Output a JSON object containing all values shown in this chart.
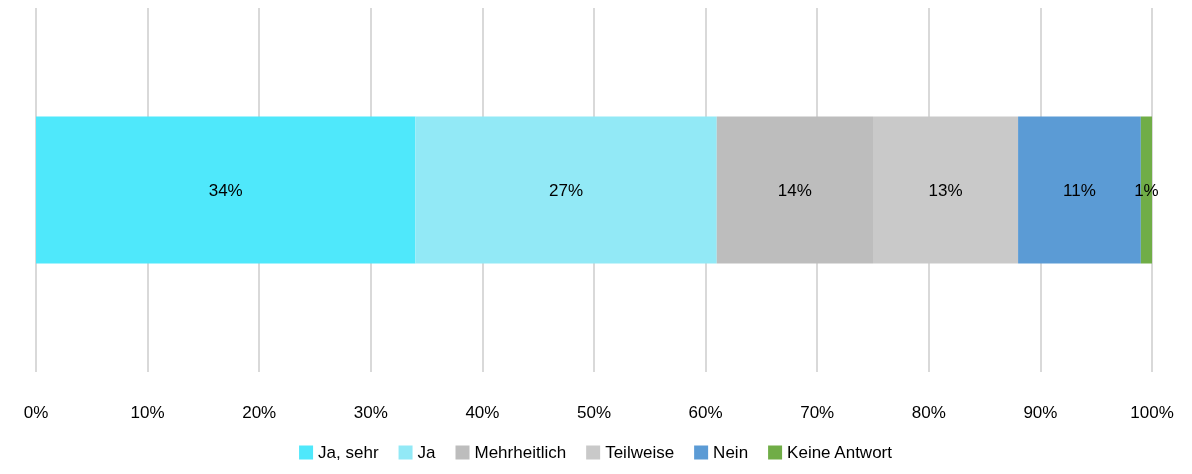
{
  "chart_data": {
    "type": "bar",
    "orientation": "horizontal",
    "stacked": true,
    "categories": [
      null
    ],
    "series": [
      {
        "name": "Ja, sehr",
        "color": "#4fe8fb",
        "values": [
          34
        ],
        "value_labels": [
          "34%"
        ]
      },
      {
        "name": "Ja",
        "color": "#92e9f6",
        "values": [
          27
        ],
        "value_labels": [
          "27%"
        ]
      },
      {
        "name": "Mehrheitlich",
        "color": "#bdbdbd",
        "values": [
          14
        ],
        "value_labels": [
          "14%"
        ]
      },
      {
        "name": "Teilweise",
        "color": "#c9c9c9",
        "values": [
          13
        ],
        "value_labels": [
          "13%"
        ]
      },
      {
        "name": "Nein",
        "color": "#5b9bd5",
        "values": [
          11
        ],
        "value_labels": [
          "11%"
        ]
      },
      {
        "name": "Keine Antwort",
        "color": "#70ad47",
        "values": [
          1
        ],
        "value_labels": [
          "1%"
        ]
      }
    ],
    "xlim": [
      0,
      100
    ],
    "xticks": [
      {
        "value": 0,
        "label": "0%"
      },
      {
        "value": 10,
        "label": "10%"
      },
      {
        "value": 20,
        "label": "20%"
      },
      {
        "value": 30,
        "label": "30%"
      },
      {
        "value": 40,
        "label": "40%"
      },
      {
        "value": 50,
        "label": "50%"
      },
      {
        "value": 60,
        "label": "60%"
      },
      {
        "value": 70,
        "label": "70%"
      },
      {
        "value": 80,
        "label": "80%"
      },
      {
        "value": 90,
        "label": "90%"
      },
      {
        "value": 100,
        "label": "100%"
      }
    ],
    "grid": "x",
    "legend": "bottom"
  }
}
